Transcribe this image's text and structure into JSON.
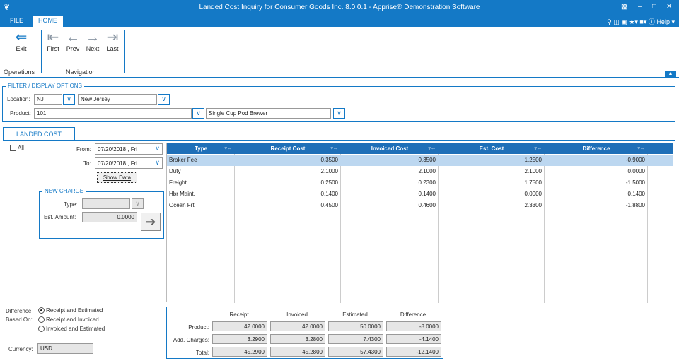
{
  "window": {
    "title": "Landed Cost Inquiry for Consumer Goods Inc. 8.0.0.1 - Apprise® Demonstration Software"
  },
  "ribbon_tabs": {
    "file": "FILE",
    "home": "HOME",
    "help": "Help"
  },
  "ribbon": {
    "exit": "Exit",
    "first": "First",
    "prev": "Prev",
    "next": "Next",
    "last": "Last",
    "group_operations": "Operations",
    "group_navigation": "Navigation"
  },
  "filter": {
    "title": "FILTER / DISPLAY OPTIONS",
    "location_label": "Location:",
    "location_code": "NJ",
    "location_name": "New Jersey",
    "product_label": "Product:",
    "product_code": "101",
    "product_name": "Single Cup Pod Brewer"
  },
  "tab": {
    "label": "LANDED COST"
  },
  "left": {
    "all_label": "All",
    "from_label": "From:",
    "from_date": "07/20/2018 , Fri",
    "to_label": "To:",
    "to_date": "07/20/2018 , Fri",
    "show_data": "Show Data",
    "new_charge_title": "NEW CHARGE",
    "type_label": "Type:",
    "type_value": "",
    "est_amount_label": "Est. Amount:",
    "est_amount_value": "0.0000",
    "difference_label": "Difference",
    "based_on_label": "Based On:",
    "options": [
      "Receipt and Estimated",
      "Receipt and Invoiced",
      "Invoiced and Estimated"
    ],
    "selected_option": 0,
    "currency_label": "Currency:",
    "currency_value": "USD"
  },
  "grid": {
    "columns": [
      "Type",
      "Receipt Cost",
      "Invoiced Cost",
      "Est. Cost",
      "Difference"
    ],
    "rows": [
      [
        "Broker Fee",
        "0.3500",
        "0.3500",
        "1.2500",
        "-0.9000"
      ],
      [
        "Duty",
        "2.1000",
        "2.1000",
        "2.1000",
        "0.0000"
      ],
      [
        "Freight",
        "0.2500",
        "0.2300",
        "1.7500",
        "-1.5000"
      ],
      [
        "Hbr Maint.",
        "0.1400",
        "0.1400",
        "0.0000",
        "0.1400"
      ],
      [
        "Ocean Frt",
        "0.4500",
        "0.4600",
        "2.3300",
        "-1.8800"
      ]
    ],
    "selected_row": 0
  },
  "totals": {
    "headers": [
      "Receipt",
      "Invoiced",
      "Estimated",
      "Difference"
    ],
    "rows": [
      {
        "label": "Product:",
        "values": [
          "42.0000",
          "42.0000",
          "50.0000",
          "-8.0000"
        ]
      },
      {
        "label": "Add. Charges:",
        "values": [
          "3.2900",
          "3.2800",
          "7.4300",
          "-4.1400"
        ]
      },
      {
        "label": "Total:",
        "values": [
          "45.2900",
          "45.2800",
          "57.4300",
          "-12.1400"
        ]
      }
    ]
  },
  "colors": {
    "accent": "#1479c6",
    "grid_header": "#1e6fb8",
    "selected_row": "#bcd7f0"
  }
}
